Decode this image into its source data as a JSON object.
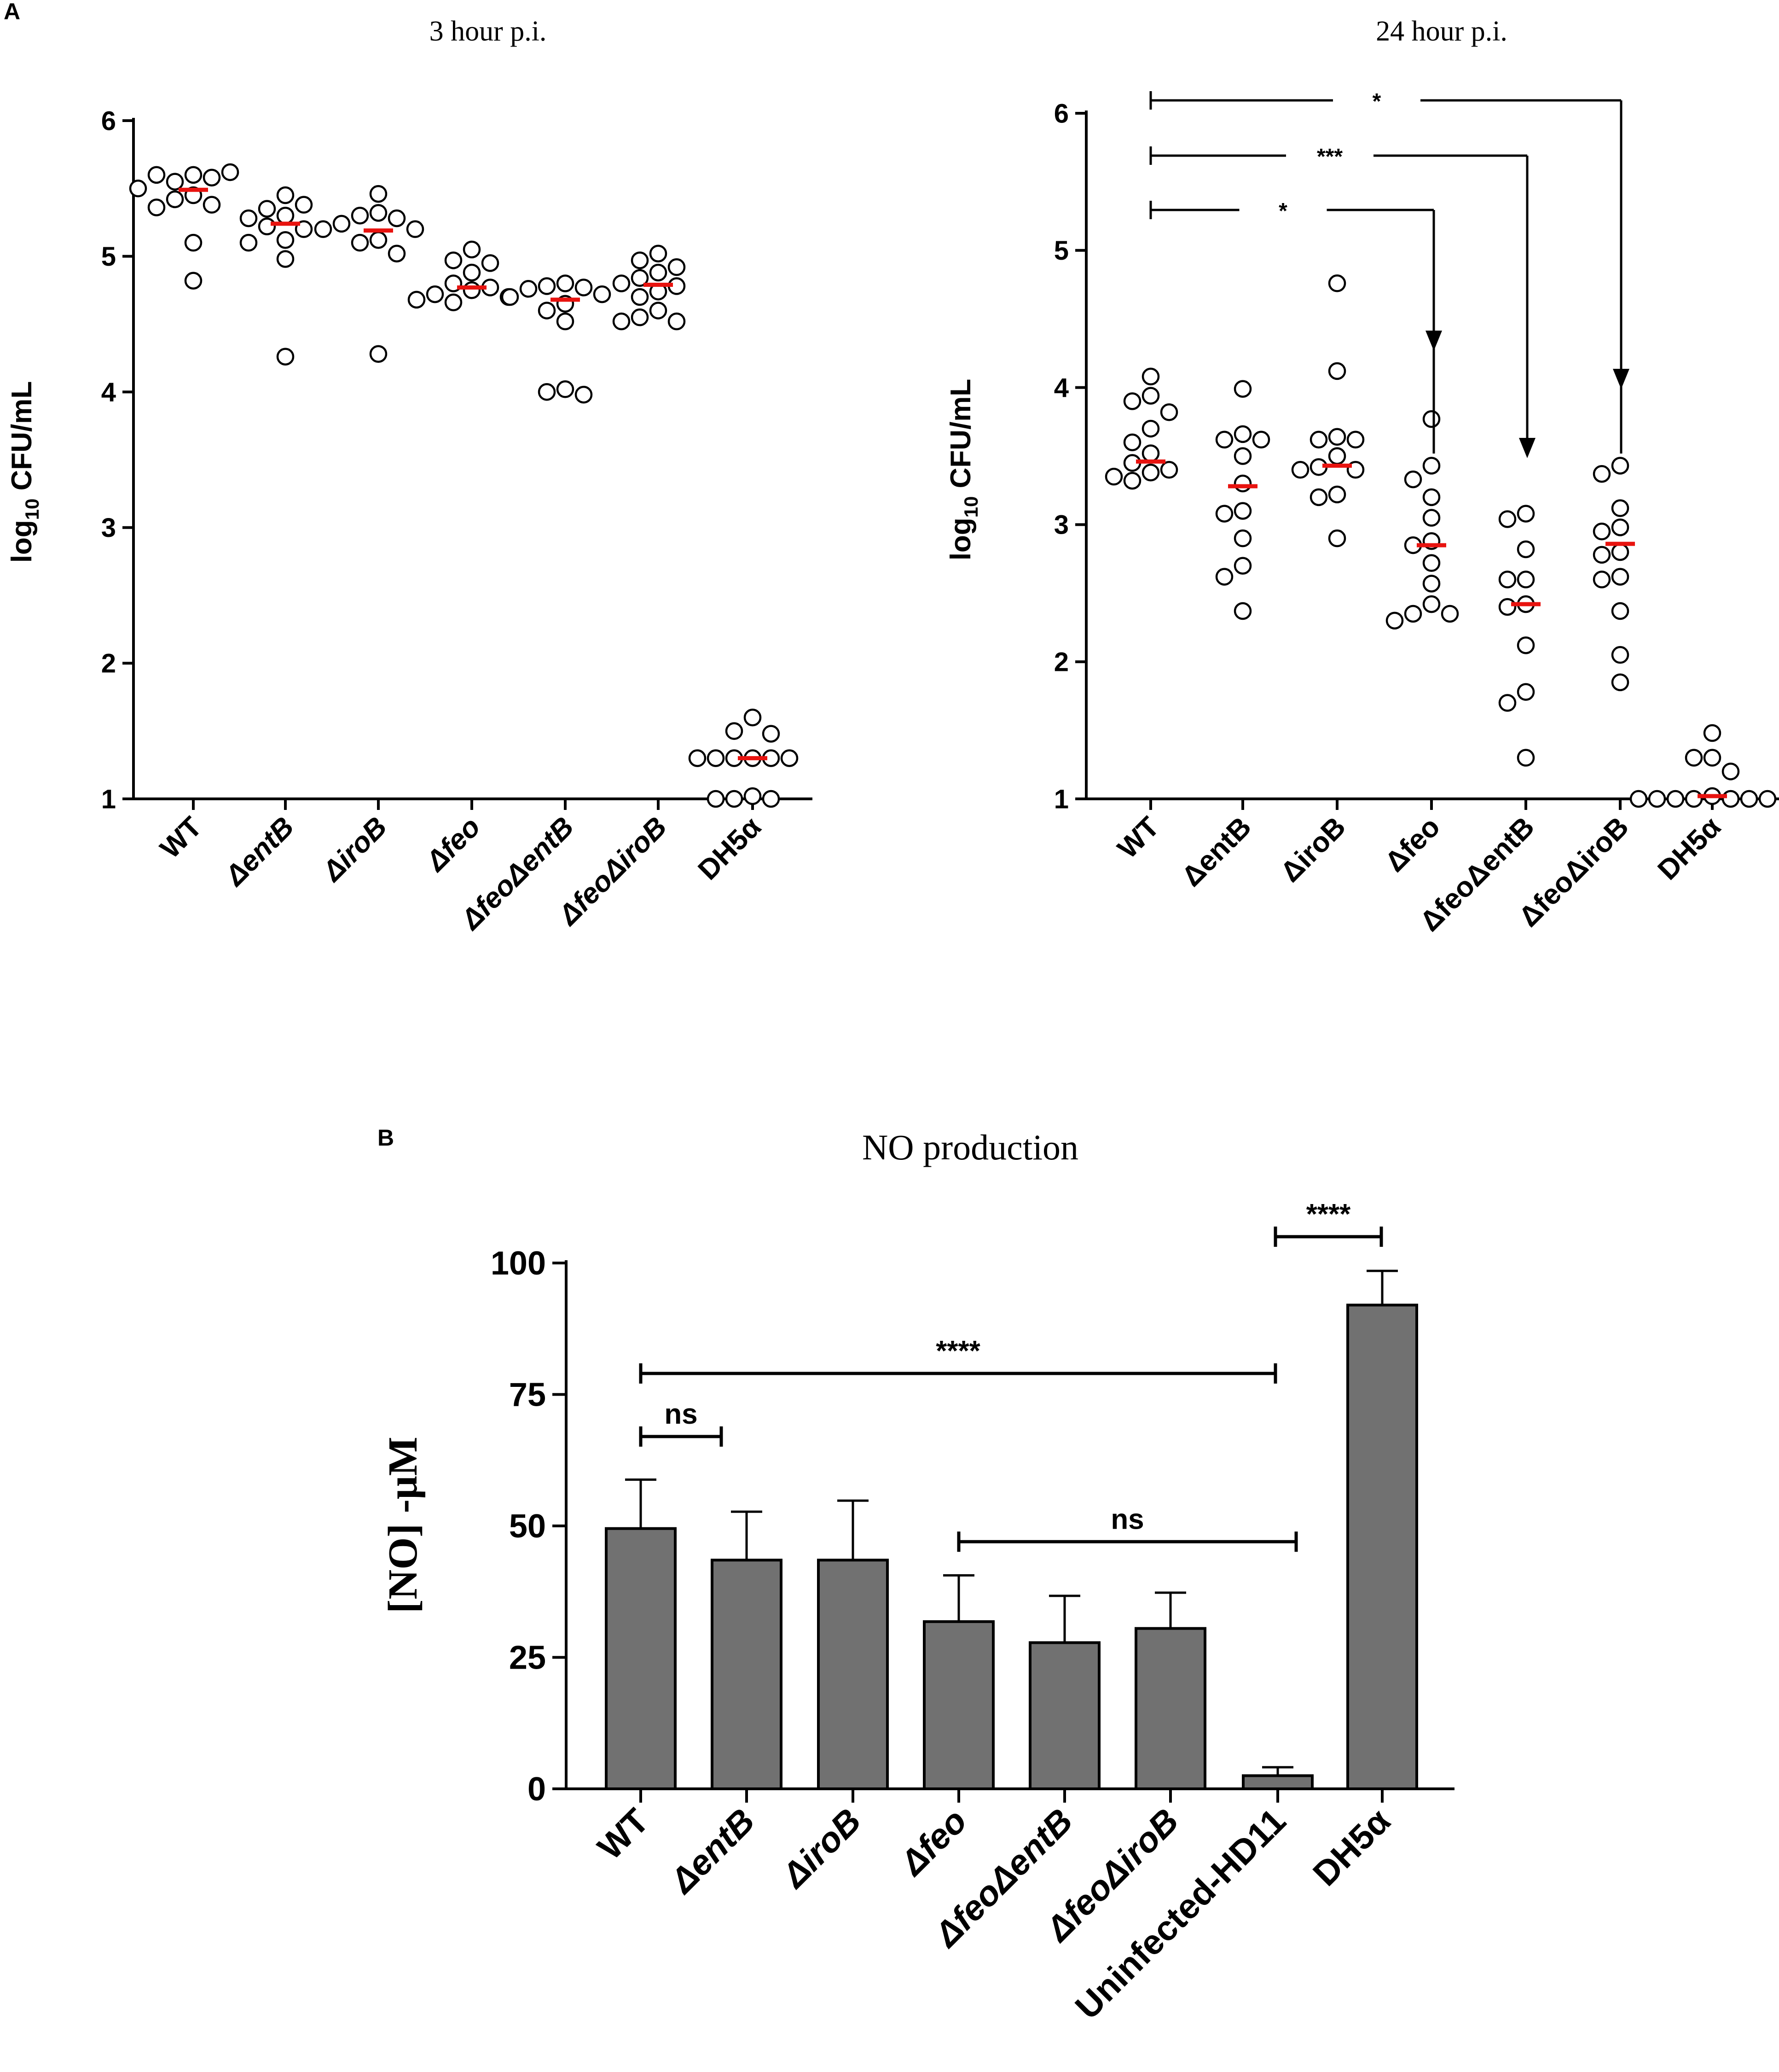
{
  "panel_labels": {
    "a": "A",
    "b": "B"
  },
  "chart_data": [
    {
      "id": "panel-a-3h",
      "type": "scatter",
      "title": "3 hour p.i.",
      "ylabel": "log",
      "ylabel_sub": "10",
      "ylabel_tail": " CFU/mL",
      "ylim": [
        1,
        6
      ],
      "yticks": [
        1,
        2,
        3,
        4,
        5,
        6
      ],
      "categories": [
        {
          "prefix": "",
          "name": "WT",
          "italic": false
        },
        {
          "prefix": "Δ",
          "name": "entB",
          "italic": true
        },
        {
          "prefix": "Δ",
          "name": "iroB",
          "italic": true
        },
        {
          "prefix": "Δ",
          "name": "feo",
          "italic": true
        },
        {
          "prefix": "Δ",
          "name": "feoΔentB",
          "italic": true
        },
        {
          "prefix": "Δ",
          "name": "feoΔiroB",
          "italic": true
        },
        {
          "prefix": "",
          "name": "DH5α",
          "italic": false
        }
      ],
      "points": [
        [
          5.6,
          5.55,
          5.58,
          5.6,
          5.62,
          5.45,
          5.42,
          5.5,
          5.38,
          5.36,
          5.1,
          4.82
        ],
        [
          5.45,
          5.35,
          5.38,
          5.3,
          5.28,
          5.22,
          5.2,
          5.12,
          5.1,
          4.98,
          4.26
        ],
        [
          5.46,
          5.32,
          5.3,
          5.28,
          5.24,
          5.2,
          5.2,
          5.12,
          5.1,
          5.02,
          4.28
        ],
        [
          5.05,
          4.97,
          4.95,
          4.88,
          4.8,
          4.77,
          4.75,
          4.72,
          4.7,
          4.68,
          4.66
        ],
        [
          4.8,
          4.78,
          4.77,
          4.76,
          4.72,
          4.7,
          4.65,
          4.6,
          4.52,
          4.02,
          4.0,
          3.98
        ],
        [
          5.02,
          4.97,
          4.92,
          4.88,
          4.84,
          4.8,
          4.78,
          4.74,
          4.7,
          4.6,
          4.55,
          4.52,
          4.52
        ],
        [
          1.6,
          1.5,
          1.48,
          1.3,
          1.3,
          1.3,
          1.3,
          1.3,
          1.3,
          1.02,
          1.0,
          1.0,
          1.0
        ]
      ],
      "medians": [
        5.49,
        5.24,
        5.19,
        4.77,
        4.68,
        4.79,
        1.3
      ],
      "median_color": "#e8130f"
    },
    {
      "id": "panel-a-24h",
      "type": "scatter",
      "title": "24 hour p.i.",
      "ylabel": "log",
      "ylabel_sub": "10",
      "ylabel_tail": " CFU/mL",
      "ylim": [
        1,
        6
      ],
      "yticks": [
        1,
        2,
        3,
        4,
        5,
        6
      ],
      "categories": [
        {
          "prefix": "",
          "name": "WT",
          "italic": false
        },
        {
          "prefix": "Δ",
          "name": "entB",
          "italic": false
        },
        {
          "prefix": "Δ",
          "name": "iroB",
          "italic": false
        },
        {
          "prefix": "Δ",
          "name": "feo",
          "italic": false
        },
        {
          "prefix": "Δ",
          "name": "feoΔentB",
          "italic": false
        },
        {
          "prefix": "Δ",
          "name": "feoΔiroB",
          "italic": false
        },
        {
          "prefix": "",
          "name": "DH5α",
          "italic": false
        }
      ],
      "points": [
        [
          4.08,
          3.94,
          3.9,
          3.82,
          3.7,
          3.6,
          3.52,
          3.45,
          3.4,
          3.38,
          3.35,
          3.32
        ],
        [
          3.99,
          3.66,
          3.62,
          3.62,
          3.5,
          3.3,
          3.1,
          3.08,
          2.9,
          2.7,
          2.62,
          2.37
        ],
        [
          4.76,
          4.12,
          3.64,
          3.62,
          3.62,
          3.5,
          3.42,
          3.4,
          3.4,
          3.22,
          3.2,
          2.9
        ],
        [
          3.77,
          3.43,
          3.33,
          3.2,
          3.05,
          2.88,
          2.85,
          2.72,
          2.57,
          2.42,
          2.35,
          2.35,
          2.3
        ],
        [
          3.08,
          3.04,
          2.82,
          2.6,
          2.6,
          2.42,
          2.4,
          2.12,
          1.78,
          1.7,
          1.3
        ],
        [
          3.43,
          3.37,
          3.12,
          2.98,
          2.95,
          2.8,
          2.78,
          2.62,
          2.6,
          2.37,
          2.05,
          1.85
        ],
        [
          1.48,
          1.3,
          1.3,
          1.2,
          1.02,
          1.0,
          1.0,
          1.0,
          1.0,
          1.0,
          1.0,
          1.0
        ]
      ],
      "medians": [
        3.46,
        3.28,
        3.43,
        2.85,
        2.42,
        2.86,
        1.02
      ],
      "median_color": "#e8130f",
      "annotations": [
        {
          "from": 0,
          "to": 5,
          "label": "*"
        },
        {
          "from": 0,
          "to": 4,
          "label": "***"
        },
        {
          "from": 0,
          "to": 3,
          "label": "*"
        }
      ]
    },
    {
      "id": "panel-b-no",
      "type": "bar",
      "title": "NO production",
      "ylabel": "[NO] -μM",
      "ylim": [
        0,
        100
      ],
      "yticks": [
        0,
        25,
        50,
        75,
        100
      ],
      "categories": [
        {
          "prefix": "",
          "name": "WT",
          "italic": false
        },
        {
          "prefix": "Δ",
          "name": "entB",
          "italic": true
        },
        {
          "prefix": "Δ",
          "name": "iroB",
          "italic": true
        },
        {
          "prefix": "Δ",
          "name": "feo",
          "italic": true
        },
        {
          "prefix": "Δ",
          "name": "feoΔentB",
          "italic": true
        },
        {
          "prefix": "Δ",
          "name": "feoΔiroB",
          "italic": true
        },
        {
          "prefix": "",
          "name": "Uninfected-HD11",
          "italic": false
        },
        {
          "prefix": "",
          "name": "DH5α",
          "italic": false
        }
      ],
      "values": [
        49.5,
        43.5,
        43.5,
        31.8,
        27.8,
        30.5,
        2.5,
        92
      ],
      "errors": [
        9.3,
        9.2,
        11.3,
        8.8,
        8.9,
        6.8,
        1.6,
        6.5
      ],
      "bar_color": "#717171",
      "annotations": [
        {
          "from": 0,
          "to": 1,
          "label": "ns",
          "level": 67
        },
        {
          "from": 0,
          "to": 6,
          "label": "****",
          "level": 79
        },
        {
          "from": 3,
          "to": 6,
          "label": "ns",
          "level": 47
        },
        {
          "from": 6,
          "to": 7,
          "label": "****",
          "level": 105
        }
      ]
    }
  ]
}
